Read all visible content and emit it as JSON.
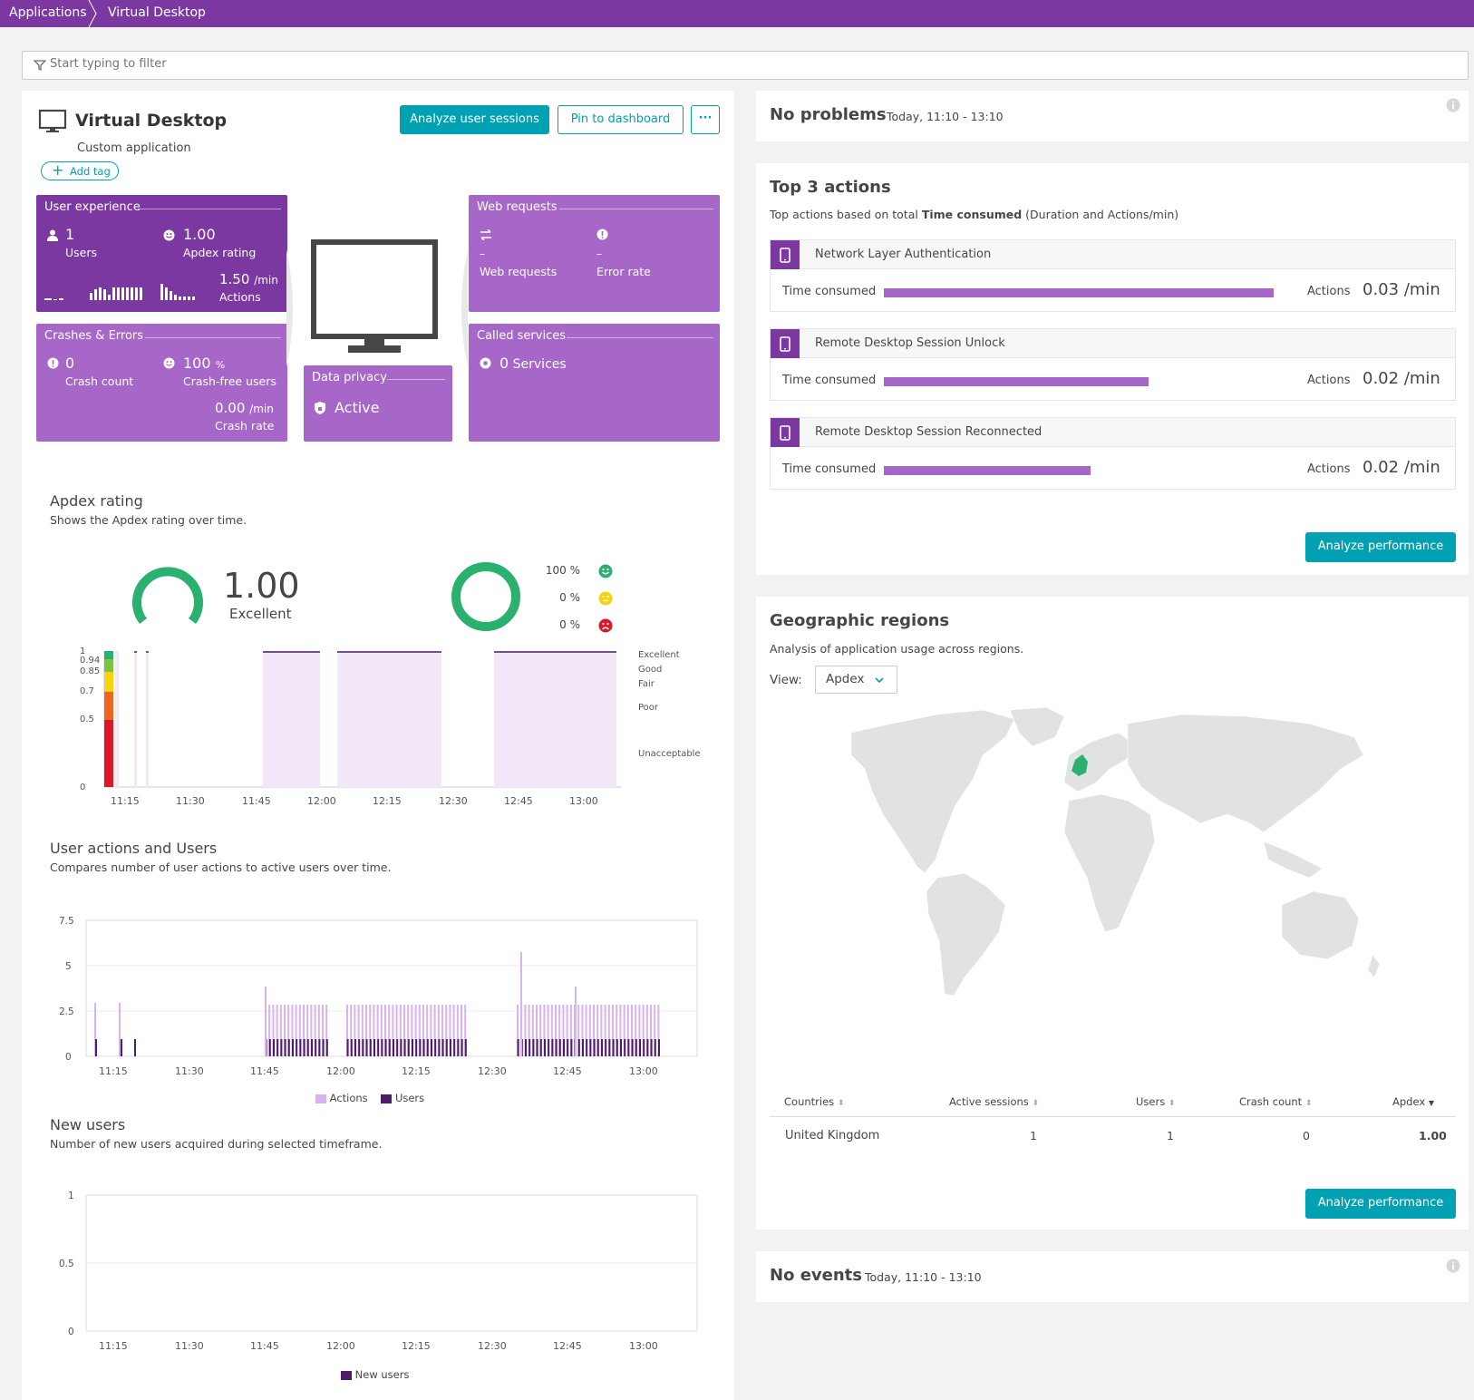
{
  "breadcrumb": {
    "root": "Applications",
    "current": "Virtual Desktop"
  },
  "filter": {
    "placeholder": "Start typing to filter"
  },
  "app": {
    "title": "Virtual Desktop",
    "subtitle": "Custom application",
    "add_tag": "Add tag",
    "analyze_sessions": "Analyze user sessions",
    "pin": "Pin to dashboard",
    "more": "···"
  },
  "tiles": {
    "user_experience": {
      "title": "User experience",
      "users_value": "1",
      "users_label": "Users",
      "apdex_value": "1.00",
      "apdex_label": "Apdex rating",
      "actions_value": "1.50",
      "actions_unit": "/min",
      "actions_label": "Actions"
    },
    "crashes": {
      "title": "Crashes & Errors",
      "crash_count_value": "0",
      "crash_count_label": "Crash count",
      "crash_free_value": "100",
      "crash_free_unit": "%",
      "crash_free_label": "Crash-free users",
      "crash_rate_value": "0.00",
      "crash_rate_unit": "/min",
      "crash_rate_label": "Crash rate"
    },
    "data_privacy": {
      "title": "Data privacy",
      "value": "Active"
    },
    "web_requests": {
      "title": "Web requests",
      "requests_value": "–",
      "requests_label": "Web requests",
      "error_value": "–",
      "error_label": "Error rate"
    },
    "called_services": {
      "title": "Called services",
      "value": "0",
      "label": "Services"
    }
  },
  "apdex": {
    "title": "Apdex rating",
    "desc": "Shows the Apdex rating over time.",
    "value": "1.00",
    "value_label": "Excellent",
    "breakdown": [
      {
        "pct": "100 %",
        "icon": "satisfied-icon",
        "color": "#2ab06f"
      },
      {
        "pct": "0 %",
        "icon": "tolerating-icon",
        "color": "#f5d30f"
      },
      {
        "pct": "0 %",
        "icon": "frustrated-icon",
        "color": "#dc172a"
      }
    ],
    "y_ticks": [
      "1",
      "0.94",
      "0.85",
      "0.7",
      "0.5",
      "0"
    ],
    "levels": [
      "Excellent",
      "Good",
      "Fair",
      "Poor",
      "Unacceptable"
    ],
    "x_ticks": [
      "11:15",
      "11:30",
      "11:45",
      "12:00",
      "12:15",
      "12:30",
      "12:45",
      "13:00"
    ]
  },
  "user_actions": {
    "title": "User actions and Users",
    "desc": "Compares number of user actions to active users over time.",
    "y_ticks": [
      "7.5",
      "5",
      "2.5",
      "0"
    ],
    "x_ticks": [
      "11:15",
      "11:30",
      "11:45",
      "12:00",
      "12:15",
      "12:30",
      "12:45",
      "13:00"
    ],
    "legend": [
      "Actions",
      "Users"
    ]
  },
  "new_users": {
    "title": "New users",
    "desc": "Number of new users acquired during selected timeframe.",
    "y_ticks": [
      "1",
      "0.5",
      "0"
    ],
    "x_ticks": [
      "11:15",
      "11:30",
      "11:45",
      "12:00",
      "12:15",
      "12:30",
      "12:45",
      "13:00"
    ],
    "legend": "New users"
  },
  "problems": {
    "title": "No problems",
    "time": "Today, 11:10 - 13:10"
  },
  "top_actions": {
    "title": "Top 3 actions",
    "desc_prefix": "Top actions based on total ",
    "desc_bold": "Time consumed",
    "desc_suffix": " (Duration and Actions/min)",
    "time_label": "Time consumed",
    "actions_label": "Actions",
    "items": [
      {
        "name": "Network Layer Authentication",
        "value": "0.03",
        "unit": "/min",
        "share": 1.0
      },
      {
        "name": "Remote Desktop Session Unlock",
        "value": "0.02",
        "unit": "/min",
        "share": 0.68
      },
      {
        "name": "Remote Desktop Session Reconnected",
        "value": "0.02",
        "unit": "/min",
        "share": 0.53
      }
    ],
    "analyze": "Analyze performance"
  },
  "geo": {
    "title": "Geographic regions",
    "desc": "Analysis of application usage across regions.",
    "view_label": "View:",
    "view_value": "Apdex",
    "columns": [
      "Countries",
      "Active sessions",
      "Users",
      "Crash count",
      "Apdex"
    ],
    "rows": [
      {
        "country": "United Kingdom",
        "sessions": "1",
        "users": "1",
        "crash": "0",
        "apdex": "1.00"
      }
    ],
    "analyze": "Analyze performance"
  },
  "events": {
    "title": "No events",
    "time": "Today, 11:10 - 13:10"
  },
  "colors": {
    "brand": "#7c38a1",
    "tile_dark": "#7c38a1",
    "tile_light": "#a667c8",
    "accent": "#00a1b2"
  }
}
